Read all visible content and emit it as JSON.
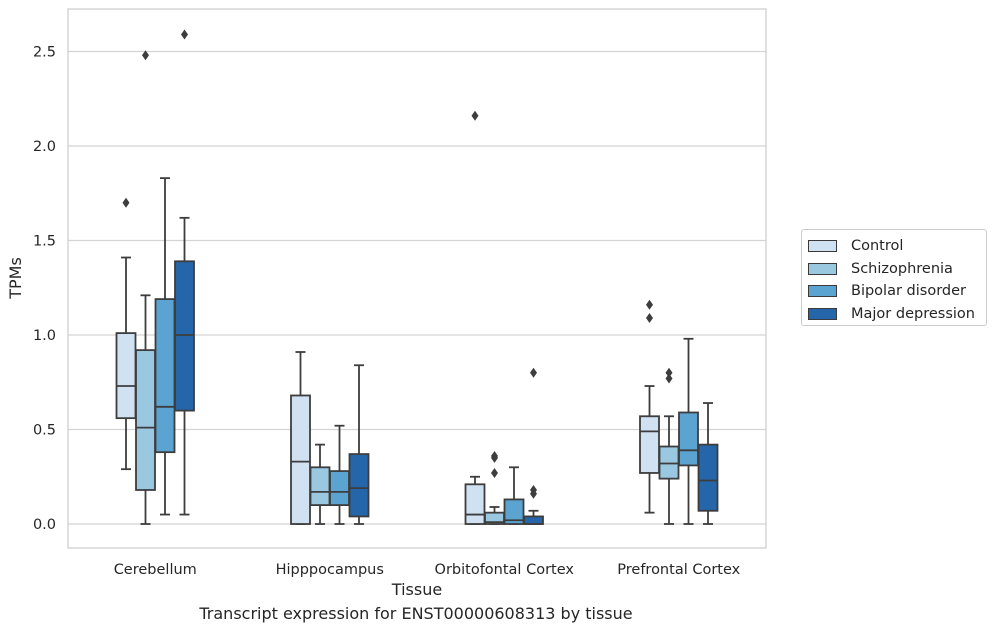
{
  "caption": "Transcript expression for ENST00000608313 by tissue",
  "chart_data": {
    "type": "box",
    "xlabel": "Tissue",
    "ylabel": "TPMs",
    "ylim": [
      -0.12,
      2.72
    ],
    "yticks": [
      0.0,
      0.5,
      1.0,
      1.5,
      2.0,
      2.5
    ],
    "ytick_labels": [
      "0.0",
      "0.5",
      "1.0",
      "1.5",
      "2.0",
      "2.5"
    ],
    "grid": true,
    "legend_position": "right",
    "categories": [
      "Cerebellum",
      "Hipppocampus",
      "Orbitofontal Cortex",
      "Prefrontal Cortex"
    ],
    "series": [
      {
        "name": "Control",
        "color": "#d0e1f2",
        "boxes": [
          {
            "whislo": 0.29,
            "q1": 0.56,
            "med": 0.73,
            "q3": 1.01,
            "whishi": 1.41,
            "fliers": [
              1.7
            ]
          },
          {
            "whislo": 0.0,
            "q1": 0.0,
            "med": 0.33,
            "q3": 0.68,
            "whishi": 0.91,
            "fliers": []
          },
          {
            "whislo": 0.0,
            "q1": 0.0,
            "med": 0.05,
            "q3": 0.21,
            "whishi": 0.25,
            "fliers": [
              2.16
            ]
          },
          {
            "whislo": 0.06,
            "q1": 0.27,
            "med": 0.49,
            "q3": 0.57,
            "whishi": 0.73,
            "fliers": [
              1.09,
              1.16
            ]
          }
        ]
      },
      {
        "name": "Schizophrenia",
        "color": "#9ac8e0",
        "boxes": [
          {
            "whislo": 0.0,
            "q1": 0.18,
            "med": 0.51,
            "q3": 0.92,
            "whishi": 1.21,
            "fliers": [
              2.48
            ]
          },
          {
            "whislo": 0.0,
            "q1": 0.1,
            "med": 0.17,
            "q3": 0.3,
            "whishi": 0.42,
            "fliers": []
          },
          {
            "whislo": 0.0,
            "q1": 0.0,
            "med": 0.01,
            "q3": 0.06,
            "whishi": 0.09,
            "fliers": [
              0.27,
              0.35,
              0.36
            ]
          },
          {
            "whislo": 0.0,
            "q1": 0.24,
            "med": 0.32,
            "q3": 0.41,
            "whishi": 0.57,
            "fliers": [
              0.77,
              0.8
            ]
          }
        ]
      },
      {
        "name": "Bipolar disorder",
        "color": "#5ba3d0",
        "boxes": [
          {
            "whislo": 0.05,
            "q1": 0.38,
            "med": 0.62,
            "q3": 1.19,
            "whishi": 1.83,
            "fliers": []
          },
          {
            "whislo": 0.0,
            "q1": 0.1,
            "med": 0.17,
            "q3": 0.28,
            "whishi": 0.52,
            "fliers": []
          },
          {
            "whislo": 0.0,
            "q1": 0.0,
            "med": 0.02,
            "q3": 0.13,
            "whishi": 0.3,
            "fliers": []
          },
          {
            "whislo": 0.0,
            "q1": 0.31,
            "med": 0.39,
            "q3": 0.59,
            "whishi": 0.98,
            "fliers": []
          }
        ]
      },
      {
        "name": "Major depression",
        "color": "#2466a9",
        "boxes": [
          {
            "whislo": 0.05,
            "q1": 0.6,
            "med": 1.0,
            "q3": 1.39,
            "whishi": 1.62,
            "fliers": [
              2.59
            ]
          },
          {
            "whislo": 0.0,
            "q1": 0.04,
            "med": 0.19,
            "q3": 0.37,
            "whishi": 0.84,
            "fliers": []
          },
          {
            "whislo": 0.0,
            "q1": 0.0,
            "med": 0.0,
            "q3": 0.04,
            "whishi": 0.07,
            "fliers": [
              0.16,
              0.18,
              0.8
            ]
          },
          {
            "whislo": 0.0,
            "q1": 0.07,
            "med": 0.23,
            "q3": 0.42,
            "whishi": 0.64,
            "fliers": []
          }
        ]
      }
    ]
  }
}
